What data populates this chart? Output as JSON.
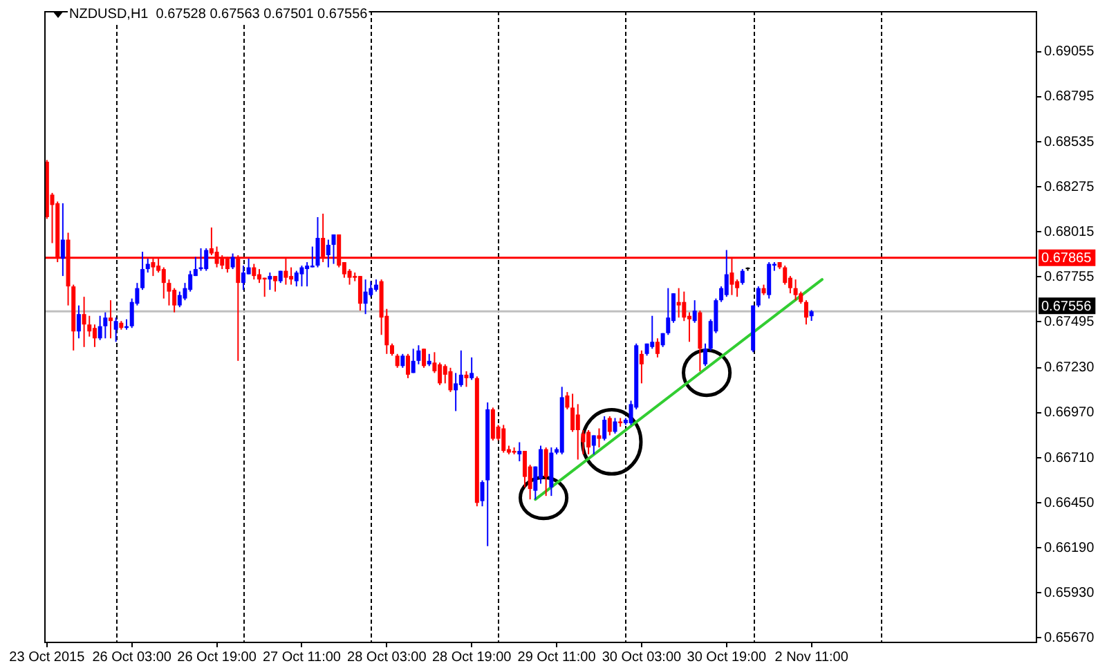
{
  "chart_data": {
    "type": "candlestick",
    "title": "NZDUSD,H1  0.67528 0.67563 0.67501 0.67556",
    "categories": [
      "23 Oct 2015",
      null,
      null,
      null,
      null,
      null,
      null,
      null,
      null,
      null,
      null,
      null,
      null,
      null,
      null,
      null,
      "26 Oct 03:00",
      null,
      null,
      null,
      null,
      null,
      null,
      null,
      null,
      null,
      null,
      null,
      null,
      null,
      null,
      null,
      "26 Oct 19:00",
      null,
      null,
      null,
      null,
      null,
      null,
      null,
      null,
      null,
      null,
      null,
      null,
      null,
      null,
      null,
      "27 Oct 11:00",
      null,
      null,
      null,
      null,
      null,
      null,
      null,
      null,
      null,
      null,
      null,
      null,
      null,
      null,
      null,
      "28 Oct 03:00",
      null,
      null,
      null,
      null,
      null,
      null,
      null,
      null,
      null,
      null,
      null,
      null,
      null,
      null,
      null,
      "28 Oct 19:00",
      null,
      null,
      null,
      null,
      null,
      null,
      null,
      null,
      null,
      null,
      null,
      null,
      null,
      null,
      null,
      "29 Oct 11:00",
      null,
      null,
      null,
      null,
      null,
      null,
      null,
      null,
      null,
      null,
      null,
      null,
      null,
      null,
      null,
      "30 Oct 03:00",
      null,
      null,
      null,
      null,
      null,
      null,
      null,
      null,
      null,
      null,
      null,
      null,
      null,
      null,
      null,
      "30 Oct 19:00",
      null,
      null,
      null,
      null,
      null,
      null,
      null,
      null,
      null,
      null,
      null,
      null,
      null,
      null,
      null,
      "2 Nov 11:00",
      null,
      null,
      null,
      null,
      null,
      null,
      null,
      null,
      null,
      null,
      null,
      null,
      null,
      null,
      null,
      null,
      null,
      null,
      null,
      null,
      null,
      null,
      null,
      null,
      null,
      null,
      null,
      null,
      null,
      null,
      null,
      null,
      null,
      null,
      null,
      null,
      null,
      null,
      null,
      null,
      null,
      null
    ],
    "series": [
      {
        "ohlc": [
          [
            0.6842,
            0.6843,
            0.6809,
            0.681
          ],
          [
            0.6823,
            0.6824,
            0.6795,
            0.6817
          ],
          [
            0.6818,
            0.6819,
            0.6784,
            0.6786
          ],
          [
            0.6786,
            0.6818,
            0.6776,
            0.6797
          ],
          [
            0.6797,
            0.6801,
            0.6759,
            0.677
          ],
          [
            0.677,
            0.6771,
            0.6733,
            0.6744
          ],
          [
            0.6744,
            0.6759,
            0.674,
            0.6754
          ],
          [
            0.6754,
            0.6764,
            0.6735,
            0.6748
          ],
          [
            0.6748,
            0.6753,
            0.6741,
            0.6744
          ],
          [
            0.6746,
            0.6748,
            0.6735,
            0.674
          ],
          [
            0.674,
            0.6753,
            0.6739,
            0.6747
          ],
          [
            0.6747,
            0.6755,
            0.674,
            0.6752
          ],
          [
            0.6752,
            0.6762,
            0.674,
            0.675
          ],
          [
            0.6745,
            0.6752,
            0.6738,
            0.675
          ],
          [
            0.6749,
            0.675,
            0.6745,
            0.6746
          ],
          [
            0.6746,
            0.6751,
            0.6745,
            0.6747
          ],
          [
            0.6747,
            0.6763,
            0.6746,
            0.6761
          ],
          [
            0.676,
            0.6772,
            0.6759,
            0.6769
          ],
          [
            0.6769,
            0.679,
            0.6768,
            0.678
          ],
          [
            0.678,
            0.6786,
            0.6778,
            0.6783
          ],
          [
            0.6784,
            0.6786,
            0.6776,
            0.6781
          ],
          [
            0.6782,
            0.6786,
            0.6778,
            0.6779
          ],
          [
            0.678,
            0.6781,
            0.6763,
            0.6772
          ],
          [
            0.6772,
            0.6774,
            0.6759,
            0.6767
          ],
          [
            0.6768,
            0.6769,
            0.6755,
            0.6759
          ],
          [
            0.6759,
            0.6767,
            0.6758,
            0.6765
          ],
          [
            0.6763,
            0.6772,
            0.6762,
            0.6769
          ],
          [
            0.6768,
            0.6779,
            0.6767,
            0.6777
          ],
          [
            0.6776,
            0.6787,
            0.6776,
            0.678
          ],
          [
            0.678,
            0.6792,
            0.6779,
            0.6781
          ],
          [
            0.678,
            0.6792,
            0.6779,
            0.6791
          ],
          [
            0.6792,
            0.6804,
            0.6788,
            0.6789
          ],
          [
            0.679,
            0.6793,
            0.6781,
            0.6783
          ],
          [
            0.6786,
            0.6788,
            0.678,
            0.6782
          ],
          [
            0.6786,
            0.6787,
            0.6778,
            0.678
          ],
          [
            0.6781,
            0.6789,
            0.678,
            0.6787
          ],
          [
            0.6787,
            0.6788,
            0.6727,
            0.6772
          ],
          [
            0.6772,
            0.6782,
            0.6768,
            0.6778
          ],
          [
            0.6777,
            0.6786,
            0.6777,
            0.6781
          ],
          [
            0.6781,
            0.6783,
            0.6774,
            0.6776
          ],
          [
            0.6777,
            0.678,
            0.6772,
            0.6774
          ],
          [
            0.6775,
            0.6775,
            0.6764,
            0.6774
          ],
          [
            0.6774,
            0.6778,
            0.6768,
            0.6776
          ],
          [
            0.6776,
            0.6776,
            0.6767,
            0.6773
          ],
          [
            0.6773,
            0.6779,
            0.6772,
            0.6779
          ],
          [
            0.6779,
            0.6786,
            0.6771,
            0.6775
          ],
          [
            0.6776,
            0.6781,
            0.6771,
            0.6774
          ],
          [
            0.6773,
            0.6779,
            0.677,
            0.6778
          ],
          [
            0.6777,
            0.6782,
            0.677,
            0.6781
          ],
          [
            0.678,
            0.6784,
            0.677,
            0.6782
          ],
          [
            0.6781,
            0.6793,
            0.6781,
            0.6782
          ],
          [
            0.6782,
            0.681,
            0.6781,
            0.6798
          ],
          [
            0.6798,
            0.6812,
            0.6784,
            0.6787
          ],
          [
            0.6788,
            0.6797,
            0.6781,
            0.6794
          ],
          [
            0.6794,
            0.68,
            0.6783,
            0.68
          ],
          [
            0.68,
            0.68,
            0.6781,
            0.6782
          ],
          [
            0.6784,
            0.6784,
            0.6775,
            0.6777
          ],
          [
            0.6779,
            0.678,
            0.6771,
            0.6775
          ],
          [
            0.6776,
            0.6778,
            0.6773,
            0.6775
          ],
          [
            0.6776,
            0.6776,
            0.6756,
            0.676
          ],
          [
            0.676,
            0.6774,
            0.6754,
            0.6767
          ],
          [
            0.6765,
            0.6773,
            0.6764,
            0.6769
          ],
          [
            0.6768,
            0.6774,
            0.6767,
            0.6771
          ],
          [
            0.6773,
            0.6774,
            0.6742,
            0.6752
          ],
          [
            0.6753,
            0.6757,
            0.6731,
            0.6736
          ],
          [
            0.6736,
            0.6737,
            0.673,
            0.6731
          ],
          [
            0.673,
            0.6731,
            0.6723,
            0.6724
          ],
          [
            0.6724,
            0.6731,
            0.6723,
            0.673
          ],
          [
            0.673,
            0.6731,
            0.6717,
            0.6719
          ],
          [
            0.672,
            0.6734,
            0.672,
            0.6727
          ],
          [
            0.6727,
            0.6736,
            0.6725,
            0.6733
          ],
          [
            0.6734,
            0.6734,
            0.6723,
            0.6724
          ],
          [
            0.6725,
            0.6731,
            0.6724,
            0.6727
          ],
          [
            0.6726,
            0.6732,
            0.672,
            0.6721
          ],
          [
            0.6725,
            0.6726,
            0.6713,
            0.6714
          ],
          [
            0.6724,
            0.6725,
            0.6714,
            0.6719
          ],
          [
            0.6721,
            0.6723,
            0.6709,
            0.671
          ],
          [
            0.671,
            0.672,
            0.6698,
            0.6714
          ],
          [
            0.6713,
            0.6733,
            0.6712,
            0.6719
          ],
          [
            0.6719,
            0.6721,
            0.6712,
            0.6717
          ],
          [
            0.6717,
            0.6729,
            0.6716,
            0.672
          ],
          [
            0.6717,
            0.6718,
            0.6643,
            0.6645
          ],
          [
            0.6646,
            0.6658,
            0.6643,
            0.6657
          ],
          [
            0.6658,
            0.6703,
            0.662,
            0.6699
          ],
          [
            0.6699,
            0.67,
            0.6681,
            0.6682
          ],
          [
            0.6689,
            0.669,
            0.6681,
            0.6682
          ],
          [
            0.6688,
            0.669,
            0.6674,
            0.6675
          ],
          [
            0.6676,
            0.6678,
            0.6673,
            0.6674
          ],
          [
            0.6675,
            0.6677,
            0.6673,
            0.6674
          ],
          [
            0.6673,
            0.668,
            0.6669,
            0.6675
          ],
          [
            0.6675,
            0.6675,
            0.6654,
            0.666
          ],
          [
            0.6666,
            0.6667,
            0.6647,
            0.6653
          ],
          [
            0.6652,
            0.6666,
            0.6647,
            0.6666
          ],
          [
            0.6659,
            0.6678,
            0.6656,
            0.6676
          ],
          [
            0.6676,
            0.6677,
            0.6649,
            0.666
          ],
          [
            0.6654,
            0.6677,
            0.6649,
            0.6674
          ],
          [
            0.6674,
            0.6677,
            0.6673,
            0.6676
          ],
          [
            0.6674,
            0.6712,
            0.6673,
            0.6706
          ],
          [
            0.6707,
            0.6709,
            0.6699,
            0.67
          ],
          [
            0.67,
            0.6708,
            0.6686,
            0.6687
          ],
          [
            0.6696,
            0.6702,
            0.667,
            0.6687
          ],
          [
            0.6685,
            0.6687,
            0.6673,
            0.668
          ],
          [
            0.6686,
            0.6687,
            0.6673,
            0.6677
          ],
          [
            0.6678,
            0.6684,
            0.6673,
            0.6684
          ],
          [
            0.6684,
            0.6688,
            0.6677,
            0.6682
          ],
          [
            0.6682,
            0.6695,
            0.6681,
            0.6693
          ],
          [
            0.6694,
            0.6695,
            0.6684,
            0.6686
          ],
          [
            0.6686,
            0.6694,
            0.6685,
            0.6692
          ],
          [
            0.6692,
            0.6694,
            0.6689,
            0.6691
          ],
          [
            0.6691,
            0.6694,
            0.669,
            0.6693
          ],
          [
            0.6691,
            0.6704,
            0.669,
            0.6702
          ],
          [
            0.67,
            0.6737,
            0.6699,
            0.6736
          ],
          [
            0.6731,
            0.6733,
            0.6714,
            0.6725
          ],
          [
            0.6731,
            0.6737,
            0.673,
            0.6737
          ],
          [
            0.6735,
            0.6753,
            0.6734,
            0.6738
          ],
          [
            0.6738,
            0.674,
            0.6729,
            0.6731
          ],
          [
            0.6736,
            0.6743,
            0.6735,
            0.6743
          ],
          [
            0.6743,
            0.6769,
            0.6742,
            0.6752
          ],
          [
            0.675,
            0.6766,
            0.6749,
            0.6766
          ],
          [
            0.6761,
            0.6769,
            0.6752,
            0.6759
          ],
          [
            0.6761,
            0.6767,
            0.675,
            0.6752
          ],
          [
            0.6753,
            0.6755,
            0.6738,
            0.6751
          ],
          [
            0.675,
            0.6762,
            0.6749,
            0.6756
          ],
          [
            0.6755,
            0.6756,
            0.6721,
            0.6734
          ],
          [
            0.6725,
            0.6737,
            0.6724,
            0.6734
          ],
          [
            0.6734,
            0.6751,
            0.6733,
            0.675
          ],
          [
            0.6744,
            0.6763,
            0.6743,
            0.6762
          ],
          [
            0.6762,
            0.677,
            0.6761,
            0.6769
          ],
          [
            0.6765,
            0.6791,
            0.6764,
            0.6777
          ],
          [
            0.6778,
            0.6786,
            0.6765,
            0.6771
          ],
          [
            0.6773,
            0.6774,
            0.6764,
            0.6769
          ],
          [
            0.6772,
            0.678,
            0.6771,
            0.6779
          ],
          [
            0.678,
            0.6781,
            0.6779,
            0.678
          ],
          [
            0.6733,
            0.6759,
            0.6732,
            0.6759
          ],
          [
            0.6759,
            0.677,
            0.6758,
            0.6769
          ],
          [
            0.6769,
            0.6771,
            0.6765,
            0.6766
          ],
          [
            0.6765,
            0.6784,
            0.6763,
            0.6783
          ],
          [
            0.6782,
            0.6784,
            0.6779,
            0.6783
          ],
          [
            0.6784,
            0.6784,
            0.678,
            0.6781
          ],
          [
            0.6781,
            0.6782,
            0.6771,
            0.6772
          ],
          [
            0.6775,
            0.6776,
            0.6766,
            0.6769
          ],
          [
            0.6769,
            0.6774,
            0.6762,
            0.6765
          ],
          [
            0.6766,
            0.6767,
            0.676,
            0.6761
          ],
          [
            0.6761,
            0.6762,
            0.6748,
            0.6752
          ],
          [
            0.67528,
            0.67563,
            0.67501,
            0.67556
          ],
          null,
          null,
          null,
          null,
          null,
          null,
          null,
          null,
          null,
          null,
          null,
          null,
          null,
          null,
          null,
          null,
          null,
          null,
          null,
          null,
          null,
          null,
          null,
          null,
          null,
          null,
          null,
          null,
          null,
          null,
          null,
          null,
          null,
          null,
          null,
          null,
          null,
          null,
          null,
          null,
          null,
          null
        ],
        "colors": [
          "#ff0000",
          "#ff0000",
          "#ff0000",
          "#0000ff",
          "#ff0000",
          "#ff0000",
          "#0000ff",
          "#ff0000",
          "#ff0000",
          "#ff0000",
          "#0000ff",
          "#0000ff",
          "#ff0000",
          "#0000ff",
          "#ff0000",
          "#0000ff",
          "#0000ff",
          "#0000ff",
          "#0000ff",
          "#0000ff",
          "#ff0000",
          "#ff0000",
          "#ff0000",
          "#ff0000",
          "#ff0000",
          "#0000ff",
          "#0000ff",
          "#0000ff",
          "#0000ff",
          "#0000ff",
          "#0000ff",
          "#ff0000",
          "#ff0000",
          "#ff0000",
          "#ff0000",
          "#0000ff",
          "#ff0000",
          "#0000ff",
          "#0000ff",
          "#ff0000",
          "#ff0000",
          "#ff0000",
          "#0000ff",
          "#ff0000",
          "#0000ff",
          "#ff0000",
          "#ff0000",
          "#0000ff",
          "#0000ff",
          "#0000ff",
          "#0000ff",
          "#0000ff",
          "#ff0000",
          "#0000ff",
          "#0000ff",
          "#ff0000",
          "#ff0000",
          "#ff0000",
          "#ff0000",
          "#ff0000",
          "#0000ff",
          "#0000ff",
          "#0000ff",
          "#ff0000",
          "#ff0000",
          "#ff0000",
          "#ff0000",
          "#0000ff",
          "#ff0000",
          "#0000ff",
          "#0000ff",
          "#ff0000",
          "#0000ff",
          "#ff0000",
          "#ff0000",
          "#ff0000",
          "#ff0000",
          "#0000ff",
          "#0000ff",
          "#ff0000",
          "#0000ff",
          "#ff0000",
          "#0000ff",
          "#0000ff",
          "#ff0000",
          "#ff0000",
          "#ff0000",
          "#ff0000",
          "#ff0000",
          "#0000ff",
          "#ff0000",
          "#ff0000",
          "#0000ff",
          "#0000ff",
          "#ff0000",
          "#0000ff",
          "#0000ff",
          "#0000ff",
          "#ff0000",
          "#ff0000",
          "#ff0000",
          "#ff0000",
          "#ff0000",
          "#0000ff",
          "#ff0000",
          "#0000ff",
          "#ff0000",
          "#0000ff",
          "#ff0000",
          "#0000ff",
          "#0000ff",
          "#0000ff",
          "#ff0000",
          "#0000ff",
          "#0000ff",
          "#ff0000",
          "#0000ff",
          "#0000ff",
          "#0000ff",
          "#ff0000",
          "#ff0000",
          "#ff0000",
          "#0000ff",
          "#ff0000",
          "#0000ff",
          "#0000ff",
          "#0000ff",
          "#0000ff",
          "#0000ff",
          "#ff0000",
          "#ff0000",
          "#0000ff",
          "#000000",
          "#0000ff",
          "#0000ff",
          "#ff0000",
          "#0000ff",
          "#0000ff",
          "#ff0000",
          "#ff0000",
          "#ff0000",
          "#ff0000",
          "#ff0000",
          "#ff0000",
          "#0000ff",
          null,
          null,
          null,
          null,
          null,
          null,
          null,
          null,
          null,
          null,
          null,
          null,
          null,
          null,
          null,
          null,
          null,
          null,
          null,
          null,
          null,
          null,
          null,
          null,
          null,
          null,
          null,
          null,
          null,
          null,
          null,
          null,
          null,
          null,
          null,
          null,
          null,
          null,
          null,
          null,
          null,
          null
        ]
      },
      {
        "type": "line",
        "color": "#32cd32",
        "values": [
          null,
          null,
          null,
          null,
          null,
          null,
          null,
          null,
          null,
          null,
          null,
          null,
          null,
          null,
          null,
          null,
          null,
          null,
          null,
          null,
          null,
          null,
          null,
          null,
          null,
          null,
          null,
          null,
          null,
          null,
          null,
          null,
          null,
          null,
          null,
          null,
          null,
          null,
          null,
          null,
          null,
          null,
          null,
          null,
          null,
          null,
          null,
          null,
          null,
          null,
          null,
          null,
          null,
          null,
          null,
          null,
          null,
          null,
          null,
          null,
          null,
          null,
          null,
          null,
          null,
          null,
          null,
          null,
          null,
          null,
          null,
          null,
          null,
          null,
          null,
          null,
          null,
          null,
          null,
          null,
          null,
          null,
          null,
          null,
          null,
          null,
          null,
          null,
          null,
          null,
          null,
          null,
          0.6647,
          null,
          null,
          null,
          null,
          null,
          null,
          null,
          null,
          null,
          null,
          null,
          null,
          null,
          null,
          null,
          null,
          null,
          null,
          null,
          null,
          null,
          null,
          null,
          null,
          null,
          null,
          null,
          null,
          null,
          null,
          null,
          null,
          null,
          null,
          null,
          null,
          null,
          null,
          null,
          null,
          null,
          null,
          null,
          null,
          null,
          null,
          null,
          null,
          null,
          null,
          null,
          null,
          null,
          0.6774,
          null,
          null,
          null,
          null,
          null,
          null,
          null,
          null,
          null,
          null,
          null,
          null,
          null,
          null,
          null,
          null,
          null,
          null,
          null,
          null,
          null,
          null,
          null,
          null,
          null,
          null,
          null,
          null,
          null,
          null,
          null,
          null,
          null,
          null,
          null,
          null,
          null,
          null,
          null,
          null
        ]
      }
    ],
    "ylim": [
      0.6564,
      0.6929
    ],
    "yticks": [
      {
        "value": 0.6567,
        "label": "0.65670"
      },
      {
        "value": 0.6593,
        "label": "0.65930"
      },
      {
        "value": 0.6619,
        "label": "0.66190"
      },
      {
        "value": 0.6645,
        "label": "0.66450"
      },
      {
        "value": 0.6671,
        "label": "0.66710"
      },
      {
        "value": 0.6697,
        "label": "0.66970"
      },
      {
        "value": 0.6723,
        "label": "0.67230"
      },
      0.67495,
      0.67755,
      0.68015,
      0.68275,
      0.68535,
      0.68795,
      0.69055
    ],
    "ref_lines": [
      {
        "axis": "y",
        "value": 0.67865,
        "label": "0.67865",
        "color": "#ff0000"
      },
      {
        "axis": "y",
        "value": 0.67556,
        "label": "0.67556",
        "color": "#c0c0c0"
      }
    ]
  }
}
